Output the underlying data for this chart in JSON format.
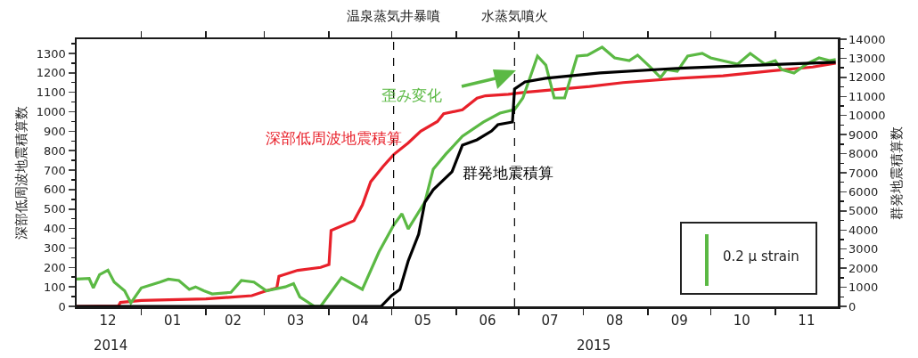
{
  "chart_data": {
    "type": "line",
    "ylabel": "深部低周波地震積算数",
    "y2label": "群発地震積算数",
    "xlim": [
      "2014-12-01",
      "2015-12-01"
    ],
    "xticks": [
      {
        "value": "2014-12-16",
        "label": "12"
      },
      {
        "value": "2015-01-16",
        "label": "01"
      },
      {
        "value": "2015-02-14",
        "label": "02"
      },
      {
        "value": "2015-03-16",
        "label": "03"
      },
      {
        "value": "2015-04-16",
        "label": "04"
      },
      {
        "value": "2015-05-16",
        "label": "05"
      },
      {
        "value": "2015-06-16",
        "label": "06"
      },
      {
        "value": "2015-07-16",
        "label": "07"
      },
      {
        "value": "2015-08-16",
        "label": "08"
      },
      {
        "value": "2015-09-16",
        "label": "09"
      },
      {
        "value": "2015-10-16",
        "label": "10"
      },
      {
        "value": "2015-11-16",
        "label": "11"
      },
      {
        "value": "2015-01-01",
        "label": null
      },
      {
        "value": "2015-02-01",
        "label": null
      },
      {
        "value": "2015-03-01",
        "label": null
      },
      {
        "value": "2015-04-01",
        "label": null
      },
      {
        "value": "2015-05-01",
        "label": null
      },
      {
        "value": "2015-06-01",
        "label": null
      },
      {
        "value": "2015-07-01",
        "label": null
      },
      {
        "value": "2015-08-01",
        "label": null
      },
      {
        "value": "2015-09-01",
        "label": null
      },
      {
        "value": "2015-10-01",
        "label": null
      },
      {
        "value": "2015-11-01",
        "label": null
      }
    ],
    "ylim": [
      0,
      1373
    ],
    "yticks": [
      0,
      100,
      200,
      300,
      400,
      500,
      600,
      700,
      800,
      900,
      1000,
      1100,
      1200,
      1300
    ],
    "y2lim": [
      0,
      14000
    ],
    "y2ticks": [
      0,
      1000,
      2000,
      3000,
      4000,
      5000,
      6000,
      7000,
      8000,
      9000,
      10000,
      11000,
      12000,
      13000,
      14000
    ],
    "grid": false,
    "legend": false,
    "line_style": "solid",
    "series": [
      {
        "name": "深部低周波地震積算",
        "color": "#e8202a",
        "x": [
          "2014-12-01",
          "2014-12-21",
          "2014-12-22",
          "2015-01-01",
          "2015-02-01",
          "2015-02-23",
          "2015-03-02",
          "2015-03-07",
          "2015-03-08",
          "2015-03-17",
          "2015-03-28",
          "2015-04-01",
          "2015-04-02",
          "2015-04-13",
          "2015-04-17",
          "2015-04-21",
          "2015-04-27",
          "2015-05-02",
          "2015-05-09",
          "2015-05-15",
          "2015-05-23",
          "2015-05-26",
          "2015-06-04",
          "2015-06-11",
          "2015-06-15",
          "2015-06-26",
          "2015-07-04",
          "2015-08-04",
          "2015-08-20",
          "2015-09-13",
          "2015-10-07",
          "2015-10-30",
          "2015-11-19",
          "2015-11-30"
        ],
        "values": [
          0,
          2,
          20,
          30,
          38,
          55,
          80,
          95,
          155,
          185,
          200,
          215,
          390,
          440,
          520,
          640,
          720,
          780,
          840,
          900,
          950,
          990,
          1010,
          1070,
          1082,
          1090,
          1100,
          1130,
          1150,
          1170,
          1185,
          1210,
          1230,
          1250
        ]
      },
      {
        "name": "群発地震積算",
        "color": "#000000",
        "axis": "y2",
        "x": [
          "2014-12-01",
          "2015-04-26",
          "2015-05-01",
          "2015-05-05",
          "2015-05-09",
          "2015-05-14",
          "2015-05-17",
          "2015-05-21",
          "2015-05-30",
          "2015-06-04",
          "2015-06-11",
          "2015-06-18",
          "2015-06-21",
          "2015-06-28",
          "2015-06-29",
          "2015-07-04",
          "2015-07-14",
          "2015-08-09",
          "2015-09-13",
          "2015-11-04",
          "2015-11-30"
        ],
        "values": [
          0,
          0,
          560,
          890,
          2380,
          3780,
          5460,
          6110,
          7050,
          8450,
          8730,
          9190,
          9520,
          9660,
          11390,
          11760,
          11950,
          12230,
          12460,
          12690,
          12790
        ]
      },
      {
        "name": "歪み変化",
        "color": "#5bb944",
        "x": [
          "2014-12-01",
          "2014-12-07",
          "2014-12-09",
          "2014-12-12",
          "2014-12-16",
          "2014-12-19",
          "2014-12-24",
          "2014-12-27",
          "2015-01-01",
          "2015-01-10",
          "2015-01-14",
          "2015-01-19",
          "2015-01-24",
          "2015-01-27",
          "2015-01-31",
          "2015-02-04",
          "2015-02-13",
          "2015-02-18",
          "2015-02-24",
          "2015-03-02",
          "2015-03-11",
          "2015-03-15",
          "2015-03-18",
          "2015-03-25",
          "2015-03-28",
          "2015-04-07",
          "2015-04-17",
          "2015-04-25",
          "2015-05-02",
          "2015-05-06",
          "2015-05-09",
          "2015-05-17",
          "2015-05-21",
          "2015-05-27",
          "2015-06-04",
          "2015-06-14",
          "2015-06-22",
          "2015-06-29",
          "2015-07-03",
          "2015-07-10",
          "2015-07-14",
          "2015-07-18",
          "2015-07-23",
          "2015-07-29",
          "2015-08-03",
          "2015-08-10",
          "2015-08-16",
          "2015-08-23",
          "2015-08-27",
          "2015-09-02",
          "2015-09-07",
          "2015-09-10",
          "2015-09-15",
          "2015-09-20",
          "2015-09-27",
          "2015-10-01",
          "2015-10-14",
          "2015-10-20",
          "2015-10-27",
          "2015-11-01",
          "2015-11-04",
          "2015-11-10",
          "2015-11-16",
          "2015-11-22",
          "2015-11-27",
          "2015-11-30"
        ],
        "values": [
          140,
          143,
          95,
          163,
          186,
          125,
          80,
          18,
          95,
          125,
          140,
          133,
          87,
          100,
          80,
          64,
          72,
          133,
          125,
          80,
          100,
          117,
          49,
          0,
          0,
          147,
          87,
          280,
          417,
          476,
          398,
          536,
          705,
          782,
          874,
          947,
          993,
          1011,
          1071,
          1286,
          1240,
          1071,
          1071,
          1286,
          1291,
          1332,
          1277,
          1263,
          1291,
          1231,
          1176,
          1217,
          1208,
          1286,
          1300,
          1277,
          1245,
          1300,
          1245,
          1263,
          1217,
          1199,
          1245,
          1277,
          1263,
          1268
        ]
      }
    ],
    "ref_lines": [
      {
        "axis": "x",
        "value": "2015-05-02",
        "label": "温泉蒸気井暴噴",
        "color": "#000000",
        "line_style": "dashed"
      },
      {
        "axis": "x",
        "value": "2015-06-29",
        "label": "水蒸気噴火",
        "color": "#000000",
        "line_style": "dashed"
      }
    ],
    "annotations": [
      "2014",
      "2015",
      "0.2 μ strain"
    ]
  }
}
